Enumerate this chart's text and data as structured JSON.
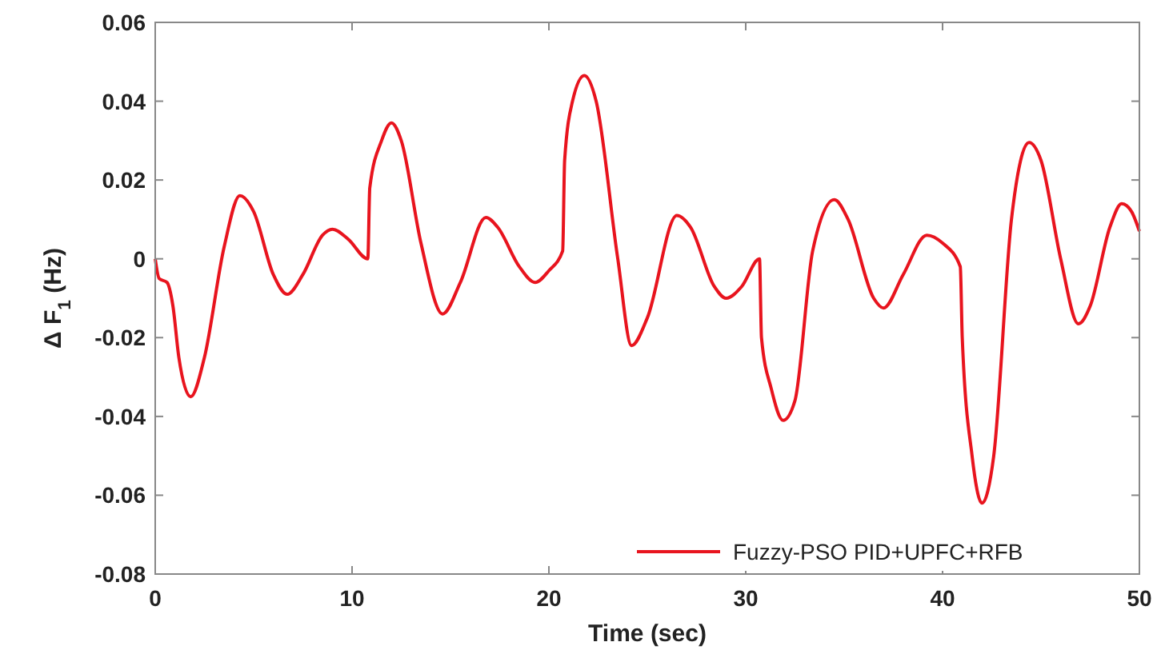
{
  "chart_data": {
    "type": "line",
    "xlabel": "Time (sec)",
    "ylabel": "Δ F$_{1}$ (Hz)",
    "xlim": [
      0,
      50
    ],
    "ylim": [
      -0.08,
      0.06
    ],
    "xticks": [
      0,
      10,
      20,
      30,
      40,
      50
    ],
    "yticks": [
      -0.08,
      -0.06,
      -0.04,
      -0.02,
      0,
      0.02,
      0.04,
      0.06
    ],
    "grid": false,
    "legend": "bottom right",
    "line_style": "solid",
    "series": [
      {
        "name": "Fuzzy-PSO PID+UPFC+RFB",
        "color": "#e8141e",
        "x": [
          0,
          0.2,
          0.6,
          0.9,
          1.2,
          1.8,
          2.5,
          3.5,
          4.3,
          5,
          6,
          6.7,
          7.5,
          8.5,
          9,
          9.8,
          10.8,
          10.9,
          11.5,
          12,
          12.5,
          13.5,
          14.6,
          15.5,
          16.8,
          17.4,
          18.5,
          19.3,
          20,
          20.7,
          20.8,
          21.2,
          21.8,
          22.4,
          23.5,
          24.2,
          25,
          26.5,
          27.2,
          28.4,
          29,
          29.8,
          30.7,
          30.8,
          31.3,
          31.9,
          32.5,
          33.4,
          34.5,
          35.2,
          36.5,
          37,
          38,
          39.2,
          40,
          40.9,
          41,
          41.5,
          42,
          42.6,
          43.5,
          44.4,
          45,
          46,
          46.9,
          47.5,
          48.5,
          49.1,
          49.6,
          50
        ],
        "values": [
          0,
          -0.005,
          -0.006,
          -0.012,
          -0.025,
          -0.035,
          -0.025,
          0.003,
          0.016,
          0.012,
          -0.004,
          -0.009,
          -0.004,
          0.006,
          0.0075,
          0.005,
          0,
          0.018,
          0.03,
          0.0345,
          0.03,
          0.004,
          -0.014,
          -0.006,
          0.0105,
          0.008,
          -0.002,
          -0.006,
          -0.003,
          0.002,
          0.025,
          0.04,
          0.0465,
          0.04,
          0,
          -0.022,
          -0.015,
          0.011,
          0.008,
          -0.007,
          -0.01,
          -0.007,
          0,
          -0.02,
          -0.033,
          -0.041,
          -0.036,
          0.002,
          0.015,
          0.01,
          -0.01,
          -0.0125,
          -0.004,
          0.006,
          0.004,
          -0.002,
          -0.02,
          -0.05,
          -0.062,
          -0.05,
          0.01,
          0.0295,
          0.025,
          0,
          -0.0165,
          -0.012,
          0.008,
          0.014,
          0.012,
          0.007
        ]
      }
    ]
  }
}
